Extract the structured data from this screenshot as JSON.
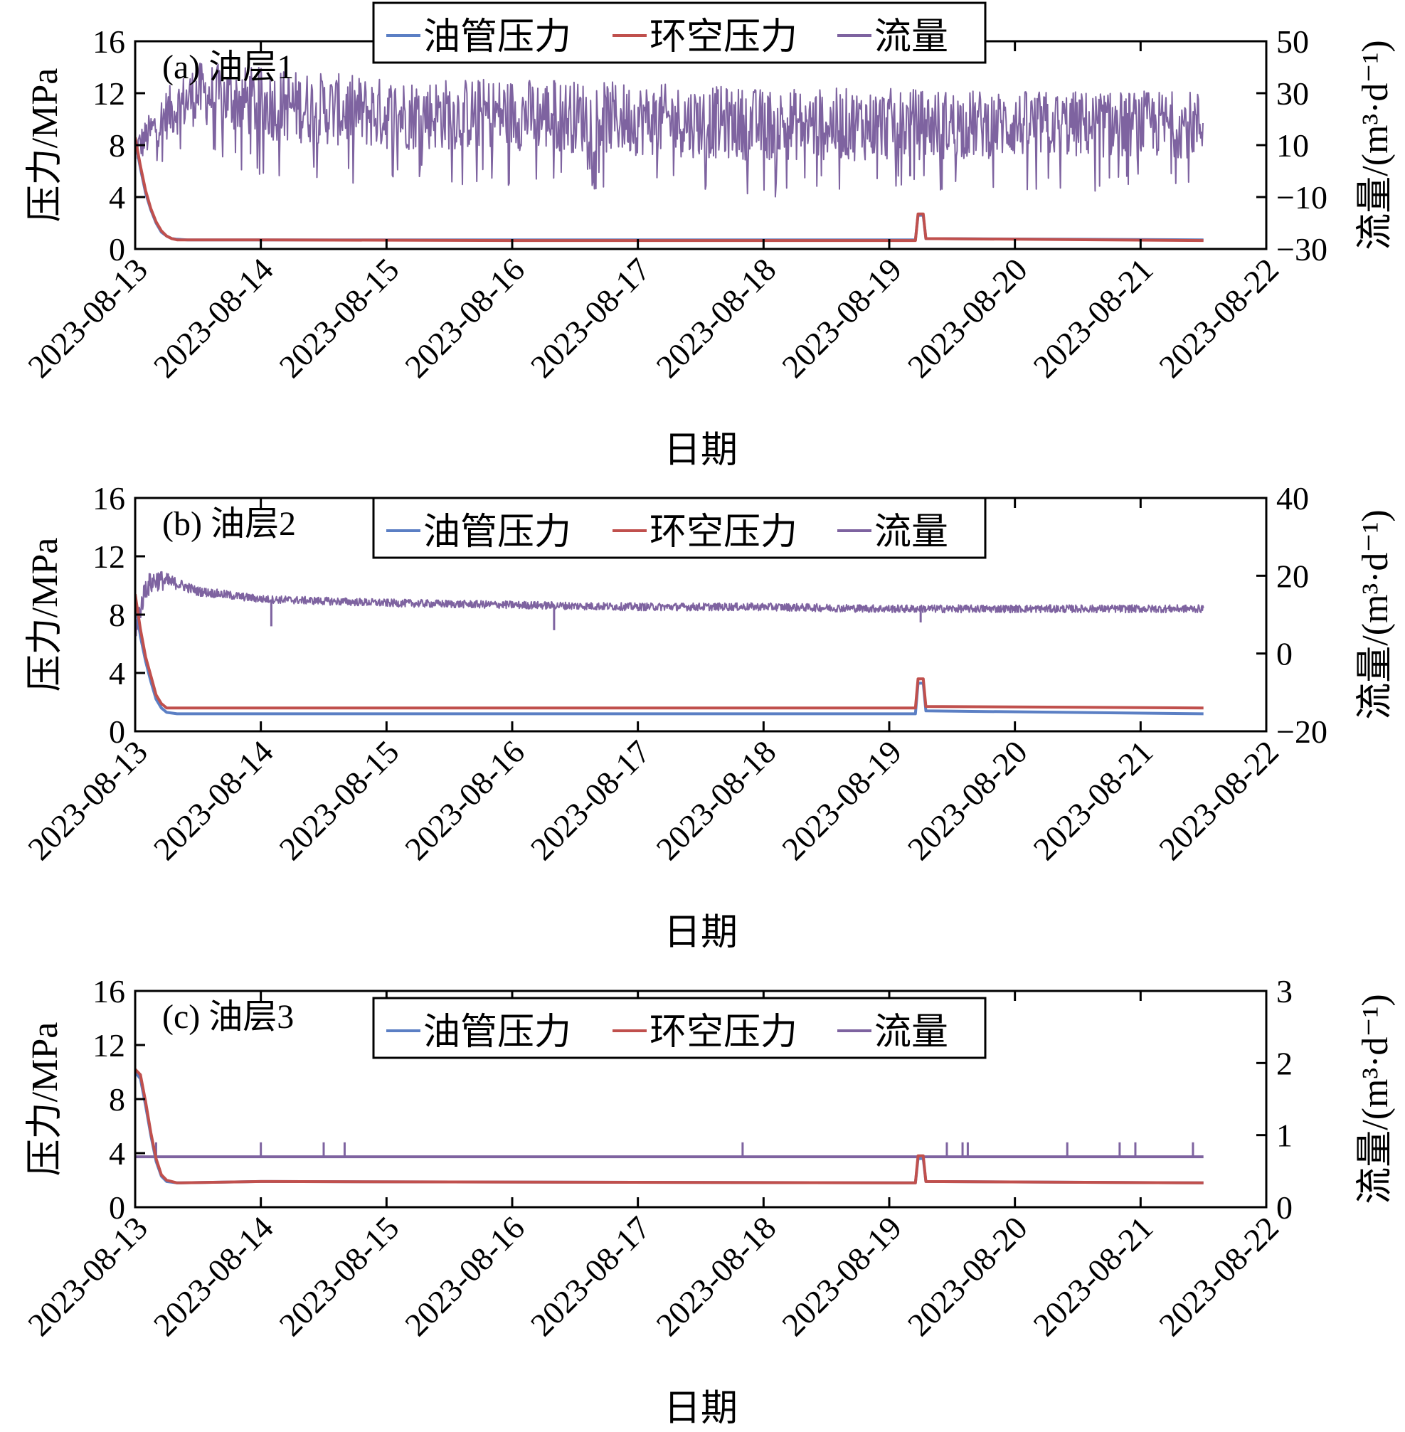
{
  "chart_data": [
    {
      "type": "line",
      "panel_label": "(a) 油层1",
      "xlabel": "日期",
      "ylabel_left": "压力/MPa",
      "ylabel_right": "流量/(m³·d⁻¹)",
      "x_ticks": [
        "2023-08-13",
        "2023-08-14",
        "2023-08-15",
        "2023-08-16",
        "2023-08-17",
        "2023-08-18",
        "2023-08-19",
        "2023-08-20",
        "2023-08-21",
        "2023-08-22"
      ],
      "y_left_ticks": [
        "0",
        "4",
        "8",
        "12",
        "16"
      ],
      "y_right_ticks": [
        "−30",
        "−10",
        "10",
        "30",
        "50"
      ],
      "ylim_left": [
        0,
        16
      ],
      "ylim_right": [
        -30,
        50
      ],
      "legend": [
        "油管压力",
        "环空压力",
        "流量"
      ],
      "legend_position": "top-center",
      "grid": false,
      "series": [
        {
          "name": "油管压力",
          "axis": "left",
          "color": "#5b7fc4",
          "x": [
            "2023-08-13T00:00",
            "2023-08-13T01:00",
            "2023-08-13T02:00",
            "2023-08-13T03:00",
            "2023-08-13T04:00",
            "2023-08-13T05:00",
            "2023-08-13T06:00",
            "2023-08-13T07:00",
            "2023-08-13T08:00",
            "2023-08-13T10:00",
            "2023-08-14T00:00",
            "2023-08-16T00:00",
            "2023-08-19T05:00",
            "2023-08-19T05:30",
            "2023-08-19T06:30",
            "2023-08-19T07:00",
            "2023-08-21T12:00"
          ],
          "y": [
            8.4,
            6.2,
            4.3,
            3.0,
            2.0,
            1.3,
            1.0,
            0.8,
            0.75,
            0.7,
            0.7,
            0.7,
            0.7,
            2.6,
            2.6,
            0.8,
            0.7
          ]
        },
        {
          "name": "环空压力",
          "axis": "left",
          "color": "#c0504d",
          "x": [
            "2023-08-13T00:00",
            "2023-08-13T01:00",
            "2023-08-13T02:00",
            "2023-08-13T03:00",
            "2023-08-13T04:00",
            "2023-08-13T05:00",
            "2023-08-13T06:00",
            "2023-08-13T07:00",
            "2023-08-13T08:00",
            "2023-08-13T10:00",
            "2023-08-14T00:00",
            "2023-08-16T00:00",
            "2023-08-19T05:00",
            "2023-08-19T05:30",
            "2023-08-19T06:30",
            "2023-08-19T07:00",
            "2023-08-21T12:00"
          ],
          "y": [
            8.6,
            6.4,
            4.5,
            3.1,
            2.1,
            1.4,
            1.0,
            0.8,
            0.7,
            0.7,
            0.7,
            0.65,
            0.65,
            2.7,
            2.7,
            0.8,
            0.65
          ]
        },
        {
          "name": "流量",
          "axis": "right",
          "color": "#7e63a0",
          "x": [
            "2023-08-13T00:00",
            "2023-08-13T06:00",
            "2023-08-13T12:00",
            "2023-08-14T00:00",
            "2023-08-15T00:00",
            "2023-08-16T00:00",
            "2023-08-17T00:00",
            "2023-08-18T00:00",
            "2023-08-19T00:00",
            "2023-08-20T00:00",
            "2023-08-21T00:00",
            "2023-08-21T12:00"
          ],
          "y_mid": [
            8,
            22,
            30,
            26,
            22,
            22,
            20,
            18,
            18,
            18,
            18,
            18
          ],
          "y_band": [
            6,
            10,
            12,
            14,
            14,
            14,
            14,
            14,
            14,
            13,
            13,
            13
          ],
          "spikes": [
            {
              "x": "2023-08-16T08:00",
              "y": 35
            },
            {
              "x": "2023-08-19T04:00",
              "y": -2
            }
          ]
        }
      ]
    },
    {
      "type": "line",
      "panel_label": "(b) 油层2",
      "xlabel": "日期",
      "ylabel_left": "压力/MPa",
      "ylabel_right": "流量/(m³·d⁻¹)",
      "x_ticks": [
        "2023-08-13",
        "2023-08-14",
        "2023-08-15",
        "2023-08-16",
        "2023-08-17",
        "2023-08-18",
        "2023-08-19",
        "2023-08-20",
        "2023-08-21",
        "2023-08-22"
      ],
      "y_left_ticks": [
        "0",
        "4",
        "8",
        "12",
        "16"
      ],
      "y_right_ticks": [
        "−20",
        "0",
        "20",
        "40"
      ],
      "ylim_left": [
        0,
        16
      ],
      "ylim_right": [
        -20,
        40
      ],
      "legend": [
        "油管压力",
        "环空压力",
        "流量"
      ],
      "legend_position": "top-center",
      "grid": false,
      "series": [
        {
          "name": "油管压力",
          "axis": "left",
          "color": "#5b7fc4",
          "x": [
            "2023-08-13T00:00",
            "2023-08-13T01:00",
            "2023-08-13T02:00",
            "2023-08-13T03:00",
            "2023-08-13T04:00",
            "2023-08-13T05:00",
            "2023-08-13T06:00",
            "2023-08-13T08:00",
            "2023-08-14T00:00",
            "2023-08-19T05:00",
            "2023-08-19T05:30",
            "2023-08-19T06:30",
            "2023-08-19T07:00",
            "2023-08-21T12:00"
          ],
          "y": [
            9.0,
            6.5,
            4.8,
            3.4,
            2.2,
            1.6,
            1.3,
            1.2,
            1.2,
            1.2,
            3.3,
            3.3,
            1.4,
            1.2
          ]
        },
        {
          "name": "环空压力",
          "axis": "left",
          "color": "#c0504d",
          "x": [
            "2023-08-13T00:00",
            "2023-08-13T01:00",
            "2023-08-13T02:00",
            "2023-08-13T03:00",
            "2023-08-13T04:00",
            "2023-08-13T05:00",
            "2023-08-13T06:00",
            "2023-08-13T08:00",
            "2023-08-14T00:00",
            "2023-08-19T05:00",
            "2023-08-19T05:30",
            "2023-08-19T06:30",
            "2023-08-19T07:00",
            "2023-08-21T12:00"
          ],
          "y": [
            9.4,
            7.0,
            5.1,
            3.8,
            2.5,
            1.9,
            1.6,
            1.6,
            1.6,
            1.6,
            3.6,
            3.6,
            1.7,
            1.6
          ]
        },
        {
          "name": "流量",
          "axis": "right",
          "color": "#7e63a0",
          "x": [
            "2023-08-13T00:00",
            "2023-08-13T02:00",
            "2023-08-13T04:00",
            "2023-08-13T08:00",
            "2023-08-13T12:00",
            "2023-08-14T00:00",
            "2023-08-15T00:00",
            "2023-08-16T00:00",
            "2023-08-17T00:00",
            "2023-08-18T00:00",
            "2023-08-19T00:00",
            "2023-08-20T00:00",
            "2023-08-21T00:00",
            "2023-08-21T12:00"
          ],
          "y_mid": [
            6,
            17,
            19,
            18,
            16,
            14,
            13,
            12.5,
            12,
            12,
            11.5,
            11.5,
            11.5,
            11.5
          ],
          "y_band": [
            3,
            3,
            3,
            1.5,
            1.2,
            1.0,
            1.0,
            1.0,
            1.0,
            1.0,
            1.0,
            1.0,
            1.0,
            1.0
          ],
          "spikes": [
            {
              "x": "2023-08-14T02:00",
              "y": 7
            },
            {
              "x": "2023-08-16T08:00",
              "y": 6
            },
            {
              "x": "2023-08-19T06:00",
              "y": 8
            }
          ]
        }
      ]
    },
    {
      "type": "line",
      "panel_label": "(c) 油层3",
      "xlabel": "日期",
      "ylabel_left": "压力/MPa",
      "ylabel_right": "流量/(m³·d⁻¹)",
      "x_ticks": [
        "2023-08-13",
        "2023-08-14",
        "2023-08-15",
        "2023-08-16",
        "2023-08-17",
        "2023-08-18",
        "2023-08-19",
        "2023-08-20",
        "2023-08-21",
        "2023-08-22"
      ],
      "y_left_ticks": [
        "0",
        "4",
        "8",
        "12",
        "16"
      ],
      "y_right_ticks": [
        "0",
        "1",
        "2",
        "3"
      ],
      "ylim_left": [
        0,
        16
      ],
      "ylim_right": [
        0,
        3
      ],
      "legend": [
        "油管压力",
        "环空压力",
        "流量"
      ],
      "legend_position": "top-center",
      "grid": false,
      "series": [
        {
          "name": "油管压力",
          "axis": "left",
          "color": "#5b7fc4",
          "x": [
            "2023-08-13T00:00",
            "2023-08-13T01:00",
            "2023-08-13T02:00",
            "2023-08-13T03:00",
            "2023-08-13T04:00",
            "2023-08-13T05:00",
            "2023-08-13T06:00",
            "2023-08-13T08:00",
            "2023-08-14T00:00",
            "2023-08-19T05:00",
            "2023-08-19T05:30",
            "2023-08-19T06:30",
            "2023-08-19T07:00",
            "2023-08-21T12:00"
          ],
          "y": [
            10.0,
            9.5,
            7.5,
            5.3,
            3.4,
            2.3,
            1.9,
            1.8,
            1.9,
            1.8,
            3.6,
            3.6,
            1.9,
            1.8
          ]
        },
        {
          "name": "环空压力",
          "axis": "left",
          "color": "#c0504d",
          "x": [
            "2023-08-13T00:00",
            "2023-08-13T01:00",
            "2023-08-13T02:00",
            "2023-08-13T03:00",
            "2023-08-13T04:00",
            "2023-08-13T05:00",
            "2023-08-13T06:00",
            "2023-08-13T08:00",
            "2023-08-14T00:00",
            "2023-08-19T05:00",
            "2023-08-19T05:30",
            "2023-08-19T06:30",
            "2023-08-19T07:00",
            "2023-08-21T12:00"
          ],
          "y": [
            10.2,
            9.8,
            7.8,
            5.5,
            3.6,
            2.4,
            2.0,
            1.8,
            1.9,
            1.8,
            3.8,
            3.8,
            1.9,
            1.8
          ]
        },
        {
          "name": "流量",
          "axis": "right",
          "color": "#7e63a0",
          "x": [
            "2023-08-13T00:00",
            "2023-08-21T12:00"
          ],
          "y": [
            0.7,
            0.7
          ],
          "spikes": [
            {
              "x": "2023-08-13T04:00",
              "y": 0.9
            },
            {
              "x": "2023-08-14T00:00",
              "y": 0.9
            },
            {
              "x": "2023-08-14T12:00",
              "y": 0.9
            },
            {
              "x": "2023-08-14T16:00",
              "y": 0.9
            },
            {
              "x": "2023-08-17T20:00",
              "y": 0.9
            },
            {
              "x": "2023-08-19T11:00",
              "y": 0.9
            },
            {
              "x": "2023-08-19T14:00",
              "y": 0.9
            },
            {
              "x": "2023-08-19T15:00",
              "y": 0.9
            },
            {
              "x": "2023-08-20T10:00",
              "y": 0.9
            },
            {
              "x": "2023-08-20T20:00",
              "y": 0.9
            },
            {
              "x": "2023-08-20T23:00",
              "y": 0.9
            },
            {
              "x": "2023-08-21T10:00",
              "y": 0.9
            }
          ]
        }
      ]
    }
  ]
}
